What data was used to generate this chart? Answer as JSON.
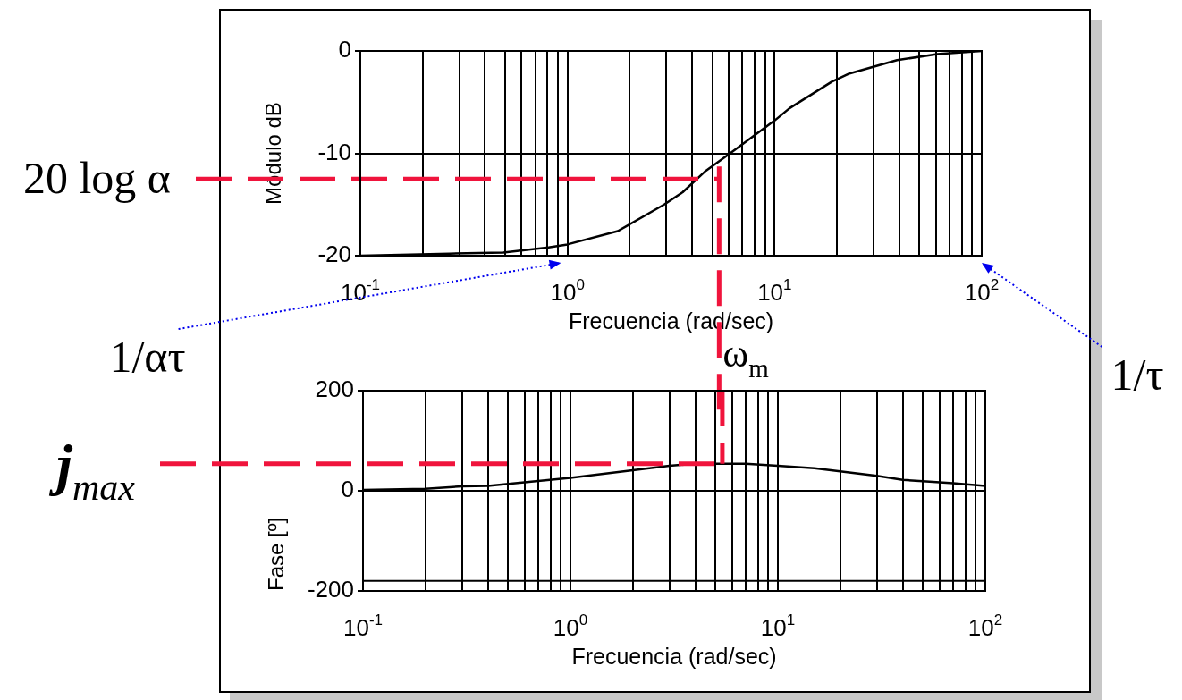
{
  "chart_data": [
    {
      "type": "line",
      "xlabel": "Frecuencia (rad/sec)",
      "ylabel": "Módulo dB",
      "log": "x",
      "grid": true,
      "x": [
        0.1,
        0.27,
        0.49,
        0.81,
        1,
        1.75,
        2.93,
        3.6,
        4.6,
        6.1,
        10,
        11.8,
        18.9,
        23,
        39,
        61,
        100
      ],
      "values": [
        -20,
        -19.8,
        -19.7,
        -19.2,
        -18.9,
        -17.6,
        -15,
        -13.8,
        -11.8,
        -10,
        -6.8,
        -5.6,
        -3,
        -2.2,
        -0.9,
        -0.3,
        0
      ],
      "color": "#000000",
      "xlim": [
        0.1,
        100
      ],
      "xticks": [
        {
          "value": 0.1,
          "label": "10$^{-1}$"
        },
        {
          "value": 0.2,
          "label": null
        },
        {
          "value": 0.3,
          "label": null
        },
        {
          "value": 0.4,
          "label": null
        },
        {
          "value": 0.5,
          "label": null
        },
        {
          "value": 0.6,
          "label": null
        },
        {
          "value": 0.7,
          "label": null
        },
        {
          "value": 0.8,
          "label": null
        },
        {
          "value": 0.9,
          "label": null
        },
        {
          "value": 1,
          "label": "10$^{0}$"
        },
        {
          "value": 2,
          "label": null
        },
        {
          "value": 3,
          "label": null
        },
        {
          "value": 4,
          "label": null
        },
        {
          "value": 5,
          "label": null
        },
        {
          "value": 6,
          "label": null
        },
        {
          "value": 7,
          "label": null
        },
        {
          "value": 8,
          "label": null
        },
        {
          "value": 9,
          "label": null
        },
        {
          "value": 10,
          "label": "10$^{1}$"
        },
        {
          "value": 20,
          "label": null
        },
        {
          "value": 30,
          "label": null
        },
        {
          "value": 40,
          "label": null
        },
        {
          "value": 50,
          "label": null
        },
        {
          "value": 60,
          "label": null
        },
        {
          "value": 70,
          "label": null
        },
        {
          "value": 80,
          "label": null
        },
        {
          "value": 90,
          "label": null
        },
        {
          "value": 100,
          "label": "10$^{2}$"
        }
      ],
      "ylim": [
        -20,
        0
      ],
      "yticks": [
        -20,
        -10,
        0
      ],
      "ref_lines": [
        {
          "axis": "y",
          "value": -12.5,
          "label": "20 log α",
          "color": "#f0143c",
          "line_style": "dashed"
        },
        {
          "axis": "x",
          "value": 5.4,
          "label": "ω$_{m}$",
          "color": "#f0143c",
          "line_style": "dashed"
        }
      ],
      "annotations": [
        "1/ατ",
        "1/τ"
      ]
    },
    {
      "type": "line",
      "xlabel": "Frecuencia (rad/sec)",
      "ylabel": "Fase [º]",
      "log": "x",
      "grid": true,
      "x": [
        0.1,
        0.2,
        0.3,
        0.4,
        0.6,
        1,
        2,
        3,
        4,
        7,
        10,
        15,
        30,
        40,
        50,
        70,
        100
      ],
      "values": [
        2,
        4,
        9,
        10,
        17,
        26,
        41,
        50,
        54,
        54,
        50,
        45,
        30,
        22,
        19,
        15,
        10
      ],
      "color": "#000000",
      "xlim": [
        0.1,
        100
      ],
      "xticks": [
        {
          "value": 0.1,
          "label": "10$^{-1}$"
        },
        {
          "value": 0.2,
          "label": null
        },
        {
          "value": 0.3,
          "label": null
        },
        {
          "value": 0.4,
          "label": null
        },
        {
          "value": 0.5,
          "label": null
        },
        {
          "value": 0.6,
          "label": null
        },
        {
          "value": 0.7,
          "label": null
        },
        {
          "value": 0.8,
          "label": null
        },
        {
          "value": 0.9,
          "label": null
        },
        {
          "value": 1,
          "label": "10$^{0}$"
        },
        {
          "value": 2,
          "label": null
        },
        {
          "value": 3,
          "label": null
        },
        {
          "value": 4,
          "label": null
        },
        {
          "value": 5,
          "label": null
        },
        {
          "value": 6,
          "label": null
        },
        {
          "value": 7,
          "label": null
        },
        {
          "value": 8,
          "label": null
        },
        {
          "value": 9,
          "label": null
        },
        {
          "value": 10,
          "label": "10$^{1}$"
        },
        {
          "value": 20,
          "label": null
        },
        {
          "value": 30,
          "label": null
        },
        {
          "value": 40,
          "label": null
        },
        {
          "value": 50,
          "label": null
        },
        {
          "value": 60,
          "label": null
        },
        {
          "value": 70,
          "label": null
        },
        {
          "value": 80,
          "label": null
        },
        {
          "value": 90,
          "label": null
        },
        {
          "value": 100,
          "label": "10$^{2}$"
        }
      ],
      "ylim": [
        -200,
        200
      ],
      "yticks": [
        -200,
        0,
        200
      ],
      "ref_lines": [
        {
          "axis": "y",
          "value": 54,
          "label": "j$_{max}$",
          "color": "#f0143c",
          "line_style": "dashed"
        },
        {
          "axis": "x",
          "value": 5.4,
          "color": "#f0143c",
          "line_style": "dashed"
        },
        {
          "axis": "y",
          "value": -180,
          "color": "#000000",
          "line_style": "solid"
        }
      ]
    }
  ]
}
